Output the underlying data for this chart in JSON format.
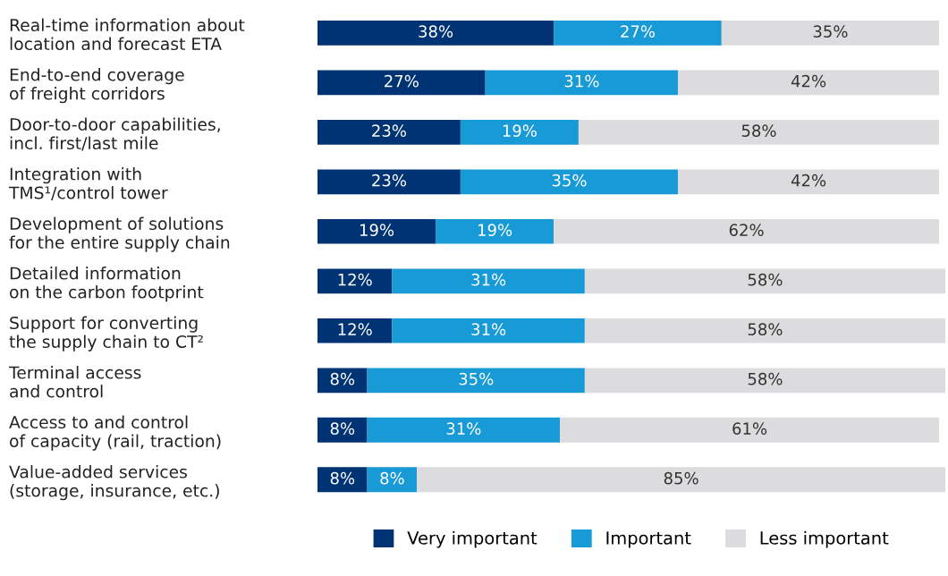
{
  "chart_data": {
    "type": "bar",
    "orientation": "horizontal",
    "stacked": true,
    "legend": "bottom",
    "grid": false,
    "categories": [
      "Real-time information about\nlocation and forecast ETA",
      "End-to-end coverage\nof freight corridors",
      "Door-to-door capabilities,\nincl. first/last mile",
      "Integration with\nTMS¹/control tower",
      "Development of solutions\nfor the entire supply chain",
      "Detailed information\non the carbon footprint",
      "Support for converting\nthe supply chain to CT²",
      "Terminal access\nand control",
      "Access to and control\nof capacity (rail, traction)",
      "Value-added services\n(storage, insurance, etc.)"
    ],
    "series": [
      {
        "name": "Very important",
        "color": "#003373",
        "values": [
          38,
          27,
          23,
          23,
          19,
          12,
          12,
          8,
          8,
          8
        ],
        "value_labels": [
          "38%",
          "27%",
          "23%",
          "23%",
          "19%",
          "12%",
          "12%",
          "8%",
          "8%",
          "8%"
        ]
      },
      {
        "name": "Important",
        "color": "#189ad6",
        "values": [
          27,
          31,
          19,
          35,
          19,
          31,
          31,
          35,
          31,
          8
        ],
        "value_labels": [
          "27%",
          "31%",
          "19%",
          "35%",
          "19%",
          "31%",
          "31%",
          "35%",
          "31%",
          "8%"
        ]
      },
      {
        "name": "Less important",
        "color": "#dcdcde",
        "values": [
          35,
          42,
          58,
          42,
          62,
          58,
          58,
          58,
          61,
          85
        ],
        "value_labels": [
          "35%",
          "42%",
          "58%",
          "42%",
          "62%",
          "58%",
          "58%",
          "58%",
          "61%",
          "85%"
        ]
      }
    ]
  }
}
